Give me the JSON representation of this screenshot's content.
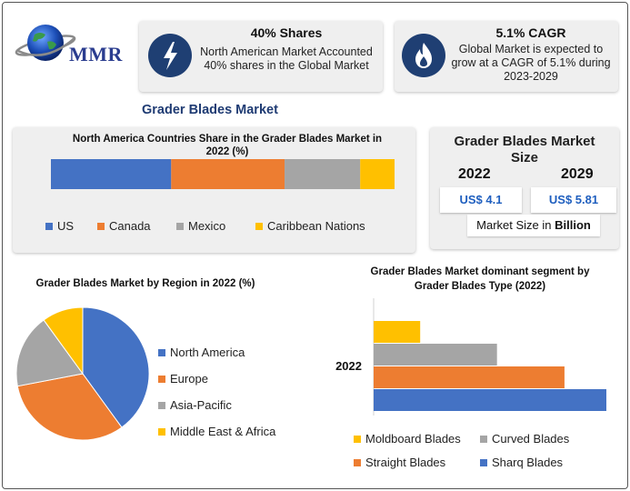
{
  "brand": {
    "logo_text": "MMR"
  },
  "stat_cards": [
    {
      "title": "40% Shares",
      "body": "North American Market Accounted 40% shares in the Global Market",
      "icon": "lightning-icon"
    },
    {
      "title": "5.1% CAGR",
      "body": "Global Market is expected to grow at a CAGR of 5.1% during 2023-2029",
      "icon": "flame-icon"
    }
  ],
  "section_title": "Grader Blades Market",
  "market_size": {
    "title": "Grader Blades Market Size",
    "years": [
      "2022",
      "2029"
    ],
    "values": [
      "US$ 4.1",
      "US$ 5.81"
    ],
    "unit_prefix": "Market Size in ",
    "unit_bold": "Billion"
  },
  "colors": {
    "blue": "#4472c4",
    "orange": "#ed7d31",
    "gray": "#a5a5a5",
    "yellow": "#ffc000",
    "navy": "#1f3f73"
  },
  "chart_data": [
    {
      "type": "bar",
      "orientation": "horizontal-stacked",
      "title": "North America Countries Share in the Grader Blades Market  in 2022 (%)",
      "categories": [
        ""
      ],
      "series": [
        {
          "name": "US",
          "values": [
            35
          ]
        },
        {
          "name": "Canada",
          "values": [
            33
          ]
        },
        {
          "name": "Mexico",
          "values": [
            22
          ]
        },
        {
          "name": "Caribbean Nations",
          "values": [
            10
          ]
        }
      ],
      "legend": "bottom"
    },
    {
      "type": "pie",
      "title": "Grader Blades Market by Region in 2022 (%)",
      "labels": [
        "North America",
        "Europe",
        "Asia-Pacific",
        "Middle East & Africa"
      ],
      "values": [
        40,
        32,
        18,
        10
      ],
      "legend": "right"
    },
    {
      "type": "bar",
      "orientation": "horizontal",
      "title": "Grader Blades Market dominant segment by Grader Blades Type (2022)",
      "categories": [
        "2022"
      ],
      "series": [
        {
          "name": "Moldboard Blades",
          "values": [
            20
          ]
        },
        {
          "name": "Curved Blades",
          "values": [
            53
          ]
        },
        {
          "name": "Straight Blades",
          "values": [
            82
          ]
        },
        {
          "name": "Sharq Blades",
          "values": [
            100
          ]
        }
      ],
      "legend": "bottom"
    }
  ]
}
